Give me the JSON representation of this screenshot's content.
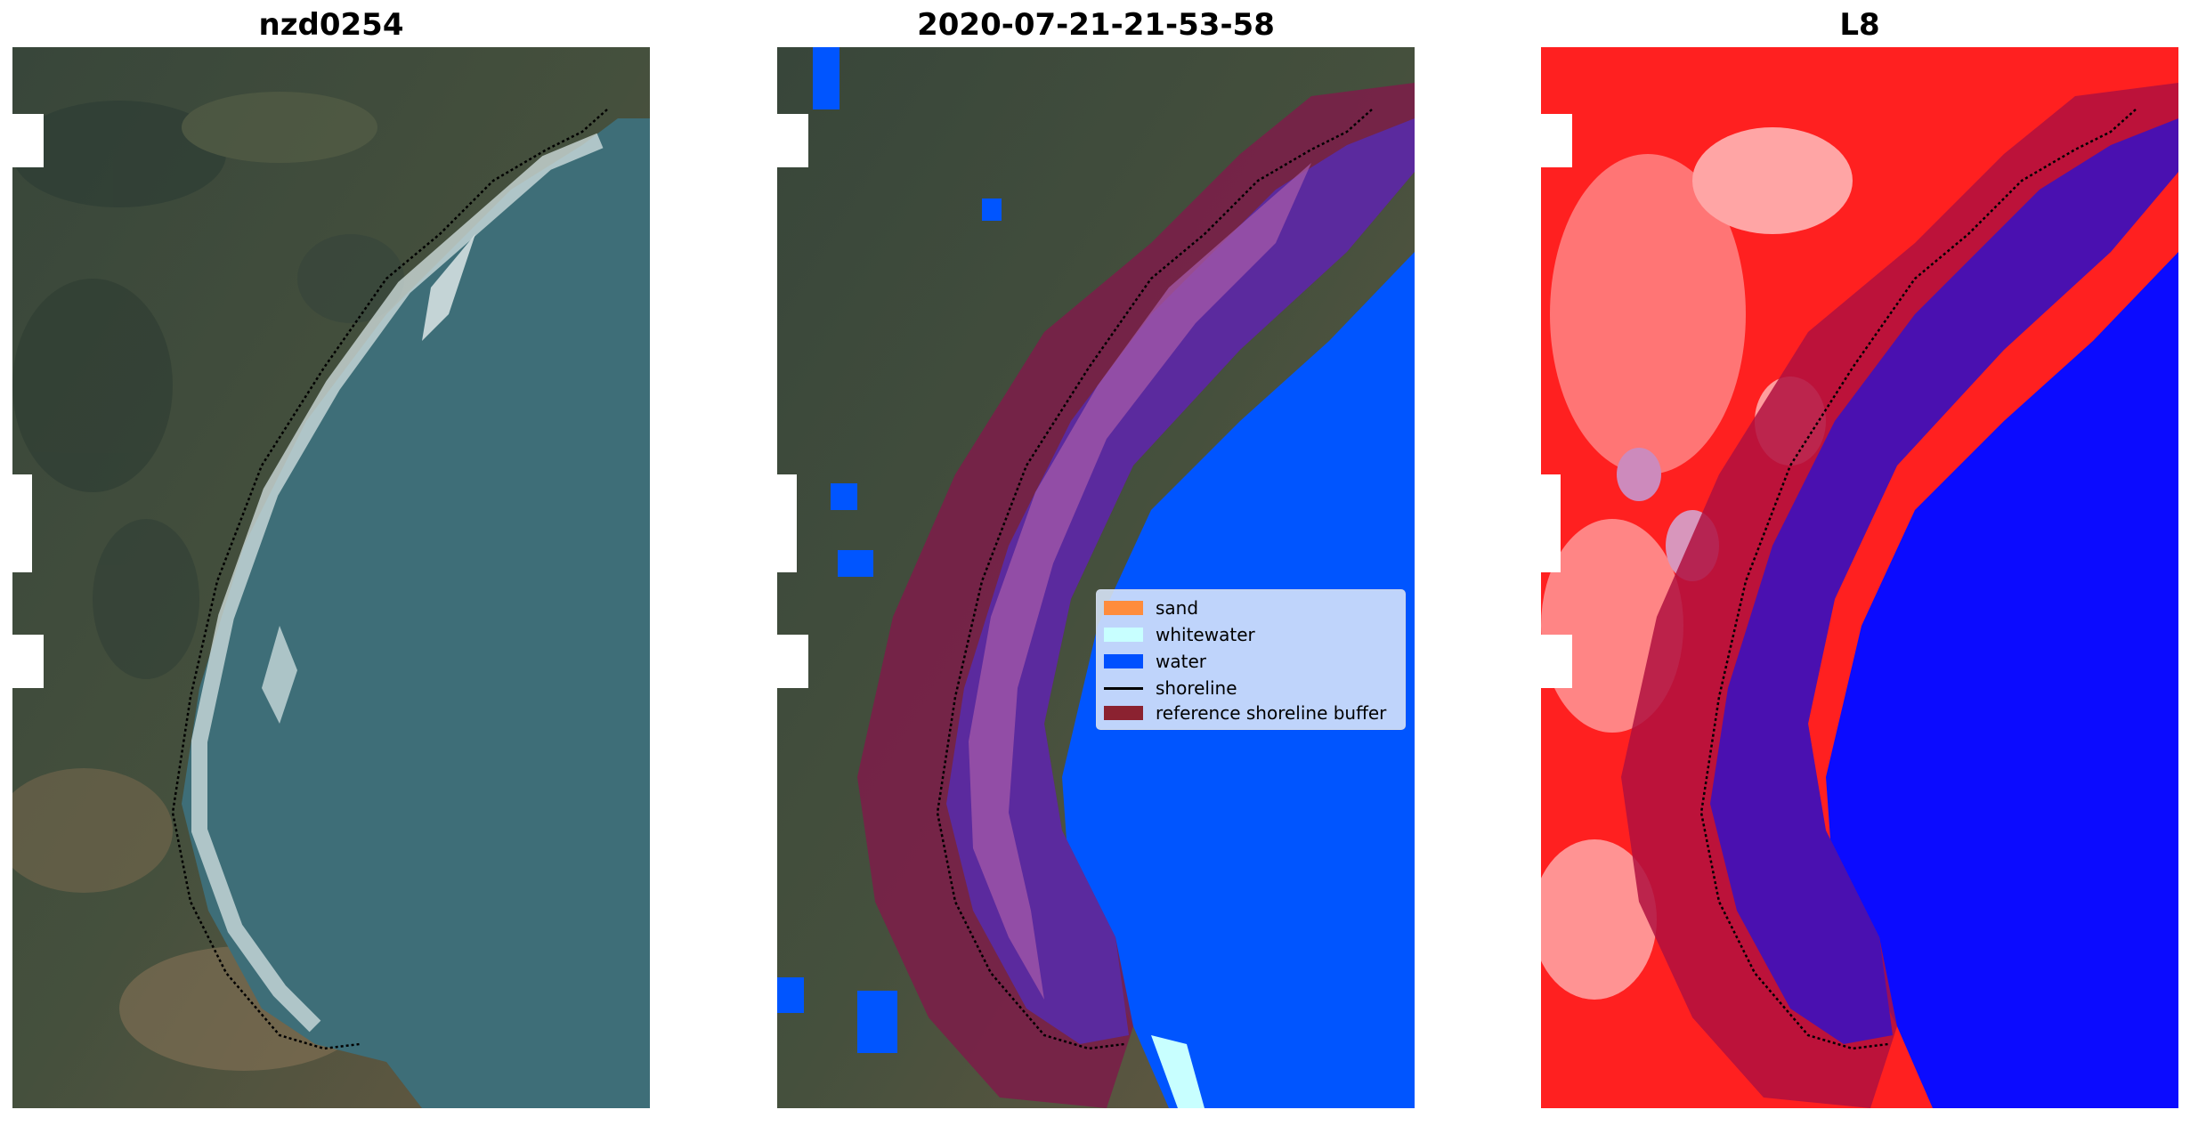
{
  "panels": [
    {
      "title": "nzd0254"
    },
    {
      "title": "2020-07-21-21-53-58"
    },
    {
      "title": "L8"
    }
  ],
  "legend": {
    "items": [
      {
        "label": "sand",
        "color": "#ff8c3c"
      },
      {
        "label": "whitewater",
        "color": "#c8ffff"
      },
      {
        "label": "water",
        "color": "#0050ff"
      },
      {
        "label": "shoreline",
        "color": "#000000"
      },
      {
        "label": "reference shoreline buffer",
        "color": "#8b2230"
      }
    ]
  },
  "colors": {
    "land_dark": "#33423a",
    "land_mid": "#4d5a43",
    "sea": "#3d6f7a",
    "surf": "#dfe9ea",
    "water_class": "#0055ff",
    "buffer": "#7a1f48",
    "buffer_over_water": "#5b2a9e",
    "index_red": "#ff1a1a",
    "index_blue": "#0b0bff"
  }
}
